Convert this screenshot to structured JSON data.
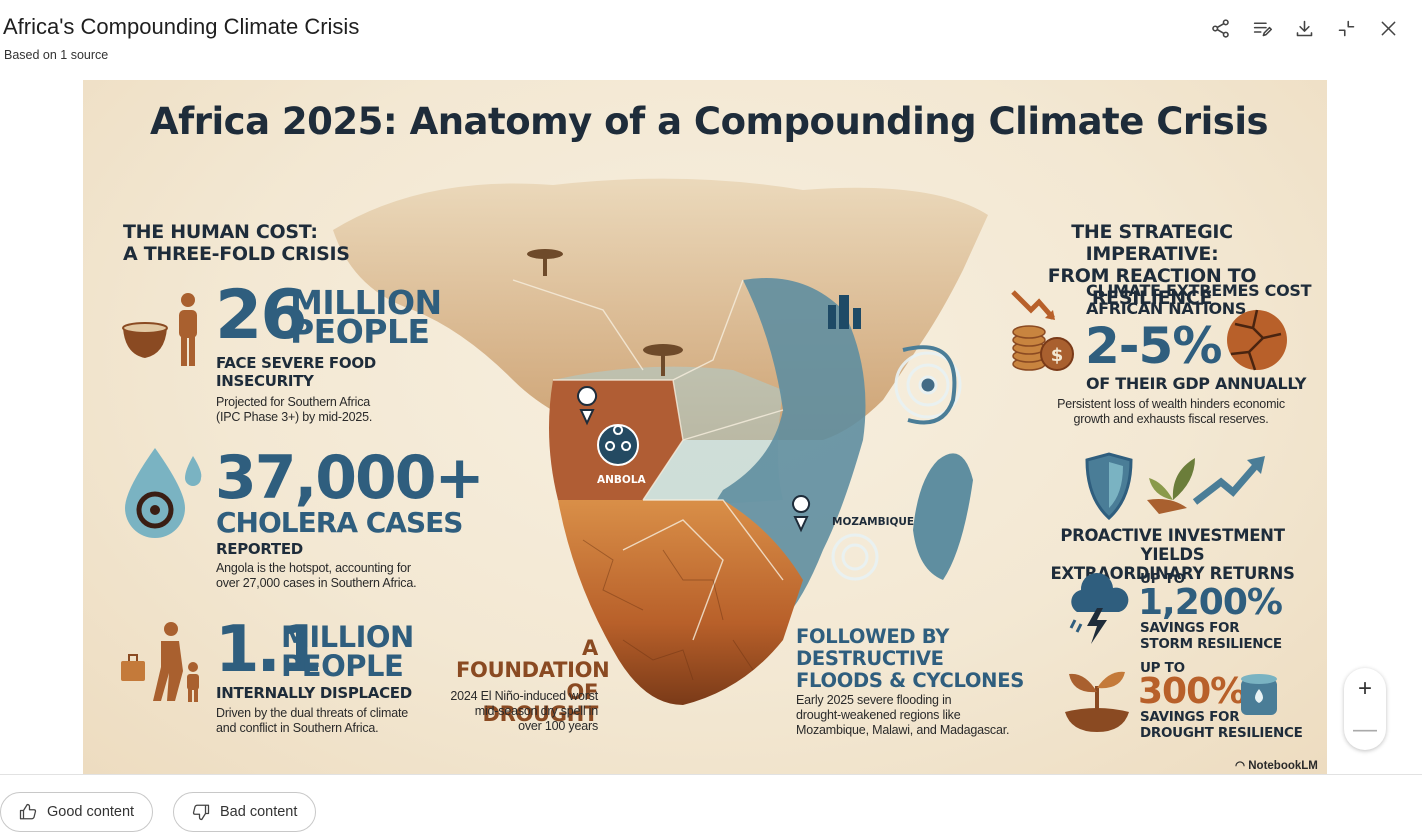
{
  "header": {
    "title": "Africa's Compounding Climate Crisis",
    "subtitle": "Based on 1 source",
    "toolbar": [
      "share-icon",
      "edit-notes-icon",
      "download-icon",
      "collapse-icon",
      "close-icon"
    ]
  },
  "infographic": {
    "title": "Africa 2025: Anatomy of a Compounding Climate Crisis",
    "left_heading": [
      "THE HUMAN COST:",
      "A THREE-FOLD CRISIS"
    ],
    "stat1": {
      "number": "26",
      "unit1": "MILLION",
      "unit2": "PEOPLE",
      "label1": "FACE SEVERE FOOD",
      "label2": "INSECURITY",
      "note1": "Projected for Southern Africa",
      "note2": "(IPC Phase 3+) by mid-2025."
    },
    "stat2": {
      "number": "37,000+",
      "unit": "CHOLERA CASES",
      "label": "REPORTED",
      "note1": "Angola is the hotspot, accounting for",
      "note2": "over 27,000 cases in Southern Africa."
    },
    "stat3": {
      "number": "1.1",
      "unit1": "MILLION",
      "unit2": "PEOPLE",
      "label": "INTERNALLY DISPLACED",
      "note1": "Driven by the dual threats of climate",
      "note2": "and conflict in Southern Africa."
    },
    "drought": {
      "heading1": "A FOUNDATION",
      "heading2": "OF DROUGHT",
      "note1": "2024 El Niño-induced worst",
      "note2": "mid-season dry spell in",
      "note3": "over 100 years"
    },
    "floods": {
      "heading1": "FOLLOWED BY",
      "heading2": "DESTRUCTIVE",
      "heading3": "FLOODS & CYCLONES",
      "note1": "Early 2025 severe flooding in",
      "note2": "drought-weakened regions like",
      "note3": "Mozambique, Malawi, and Madagascar."
    },
    "map_labels": {
      "angola": "ANBOLA",
      "mozambique": "MOZAMBIQUE"
    },
    "right_heading": [
      "THE STRATEGIC IMPERATIVE:",
      "FROM REACTION TO RESILIENCE"
    ],
    "gdp": {
      "label1": "CLIMATE EXTREMES COST",
      "label2": "AFRICAN NATIONS",
      "number": "2-5%",
      "label3": "OF THEIR GDP ANNUALLY",
      "note1": "Persistent loss of wealth hinders economic",
      "note2": "growth and exhausts fiscal reserves."
    },
    "invest": {
      "heading1": "PROACTIVE INVESTMENT YIELDS",
      "heading2": "EXTRAORDINARY RETURNS"
    },
    "storm": {
      "upto": "UP TO",
      "number": "1,200%",
      "label1": "SAVINGS FOR",
      "label2": "STORM RESILIENCE"
    },
    "droughtres": {
      "upto": "UP TO",
      "number": "300%",
      "label1": "SAVINGS FOR",
      "label2": "DROUGHT RESILIENCE"
    },
    "watermark": "NotebookLM"
  },
  "zoom": {
    "in": "+",
    "out": "—"
  },
  "feedback": {
    "good": "Good content",
    "bad": "Bad content"
  },
  "colors": {
    "accent_blue": "#2f5e7e",
    "accent_brown": "#8a4a22",
    "navy": "#1e2c3a",
    "background": "#f3e8d3"
  }
}
